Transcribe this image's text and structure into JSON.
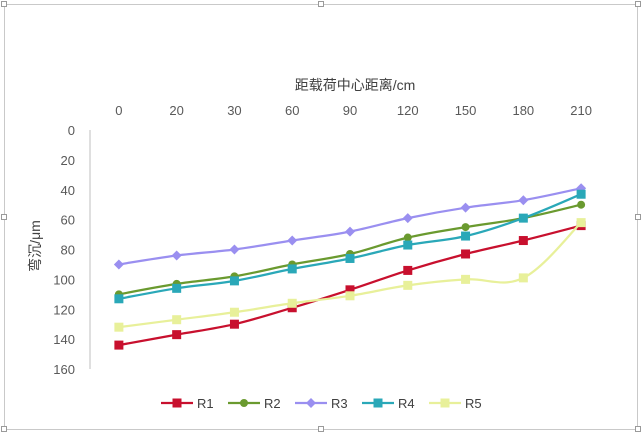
{
  "chart_data": {
    "type": "line",
    "title": "",
    "xlabel": "距载荷中心距离/cm",
    "ylabel": "弯沉/μm",
    "categories": [
      "0",
      "20",
      "30",
      "60",
      "90",
      "120",
      "150",
      "180",
      "210"
    ],
    "ylim": [
      0,
      160
    ],
    "y_reversed": true,
    "y_ticks": [
      0,
      20,
      40,
      60,
      80,
      100,
      120,
      140,
      160
    ],
    "x_axis_position": "top",
    "grid": false,
    "legend_position": "bottom",
    "smooth": true,
    "series": [
      {
        "name": "R1",
        "color": "#c8102e",
        "marker": "square",
        "values": [
          144,
          137,
          130,
          119,
          107,
          94,
          83,
          74,
          64
        ]
      },
      {
        "name": "R2",
        "color": "#6a9a2f",
        "marker": "circle",
        "values": [
          110,
          103,
          98,
          90,
          83,
          72,
          65,
          59,
          50
        ]
      },
      {
        "name": "R3",
        "color": "#9a8ff0",
        "marker": "diamond",
        "values": [
          90,
          84,
          80,
          74,
          68,
          59,
          52,
          47,
          39
        ]
      },
      {
        "name": "R4",
        "color": "#2aa8b8",
        "marker": "square",
        "values": [
          113,
          106,
          101,
          93,
          86,
          77,
          71,
          59,
          43
        ]
      },
      {
        "name": "R5",
        "color": "#e8f09a",
        "marker": "square",
        "values": [
          132,
          127,
          122,
          116,
          111,
          104,
          100,
          99,
          62
        ]
      }
    ]
  }
}
